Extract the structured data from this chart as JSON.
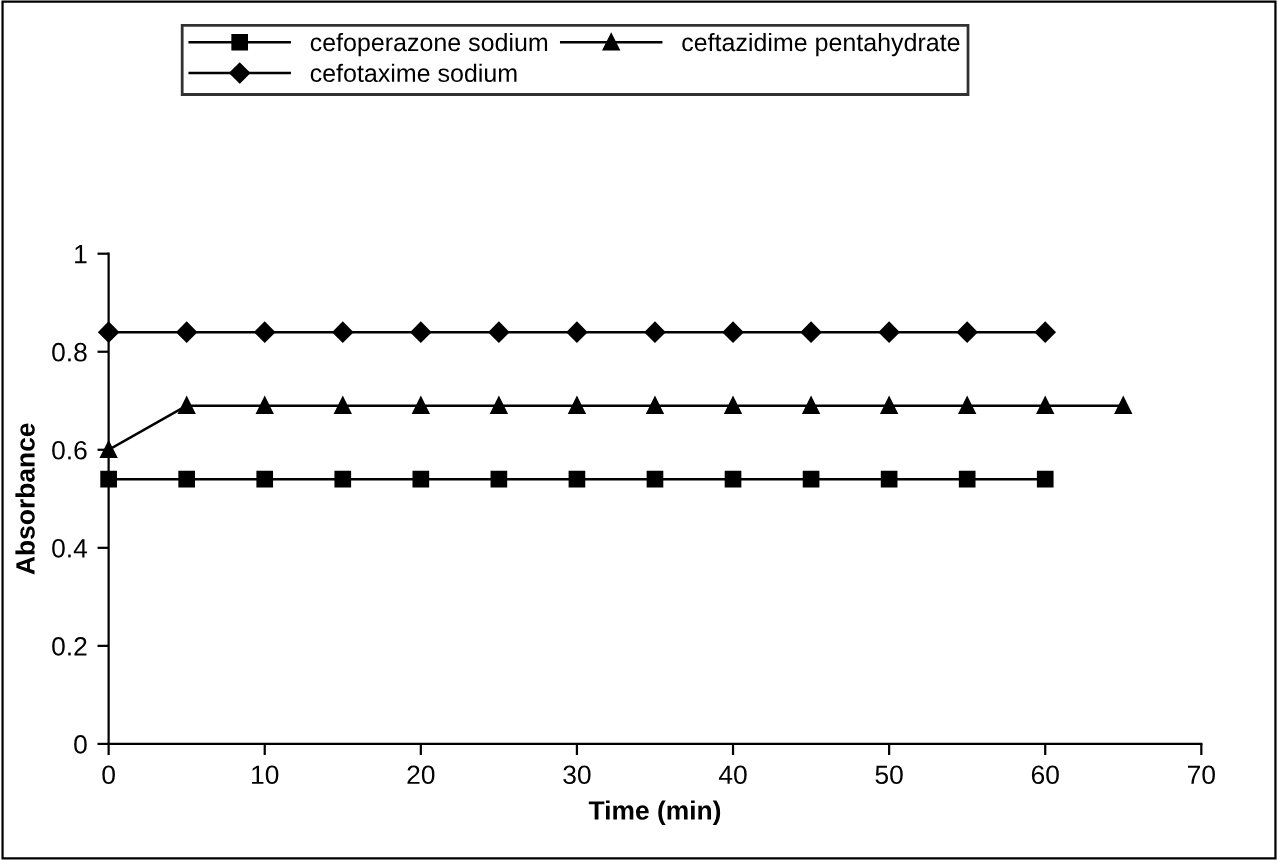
{
  "chart_data": {
    "type": "line",
    "xlabel": "Time (min)",
    "ylabel": "Absorbance",
    "xlim": [
      0,
      70
    ],
    "xticks": [
      0,
      10,
      20,
      30,
      40,
      50,
      60,
      70
    ],
    "ylim": [
      0,
      1
    ],
    "yticks": [
      0,
      0.2,
      0.4,
      0.6,
      0.8,
      1
    ],
    "grid": false,
    "legend": "top",
    "line_style": "solid",
    "series": [
      {
        "name": "cefoperazone sodium",
        "color": "#000000",
        "marker": "square",
        "x": [
          0,
          5,
          10,
          15,
          20,
          25,
          30,
          35,
          40,
          45,
          50,
          55,
          60
        ],
        "values": [
          0.54,
          0.54,
          0.54,
          0.54,
          0.54,
          0.54,
          0.54,
          0.54,
          0.54,
          0.54,
          0.54,
          0.54,
          0.54
        ]
      },
      {
        "name": "ceftazidime pentahydrate",
        "color": "#000000",
        "marker": "triangle",
        "x": [
          0,
          5,
          10,
          15,
          20,
          25,
          30,
          35,
          40,
          45,
          50,
          55,
          60,
          65
        ],
        "values": [
          0.6,
          0.69,
          0.69,
          0.69,
          0.69,
          0.69,
          0.69,
          0.69,
          0.69,
          0.69,
          0.69,
          0.69,
          0.69,
          0.69
        ]
      },
      {
        "name": "cefotaxime sodium",
        "color": "#000000",
        "marker": "diamond",
        "x": [
          0,
          5,
          10,
          15,
          20,
          25,
          30,
          35,
          40,
          45,
          50,
          55,
          60
        ],
        "values": [
          0.84,
          0.84,
          0.84,
          0.84,
          0.84,
          0.84,
          0.84,
          0.84,
          0.84,
          0.84,
          0.84,
          0.84,
          0.84
        ]
      }
    ]
  }
}
